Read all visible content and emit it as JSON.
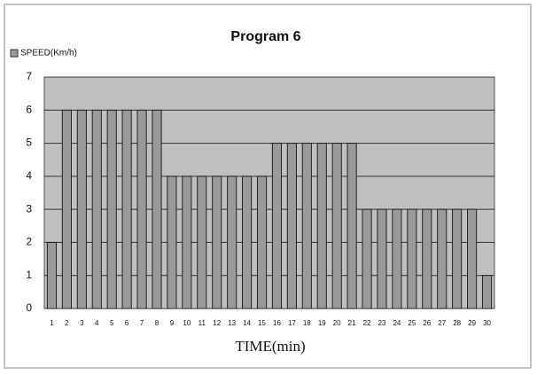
{
  "chart_data": {
    "type": "bar",
    "title": "Program 6",
    "legend": "SPEED(Km/h)",
    "x_label": "TIME(min)",
    "categories": [
      "1",
      "2",
      "3",
      "4",
      "5",
      "6",
      "7",
      "8",
      "9",
      "10",
      "11",
      "12",
      "13",
      "14",
      "15",
      "16",
      "17",
      "18",
      "19",
      "20",
      "21",
      "22",
      "23",
      "24",
      "25",
      "26",
      "27",
      "28",
      "29",
      "30"
    ],
    "values": [
      2,
      6,
      6,
      6,
      6,
      6,
      6,
      6,
      4,
      4,
      4,
      4,
      4,
      4,
      4,
      5,
      5,
      5,
      5,
      5,
      5,
      3,
      3,
      3,
      3,
      3,
      3,
      3,
      3,
      1
    ],
    "color": "#9a9a9a",
    "ylim": [
      0,
      7
    ],
    "yticks": [
      0,
      1,
      2,
      3,
      4,
      5,
      6,
      7
    ],
    "grid": true
  }
}
